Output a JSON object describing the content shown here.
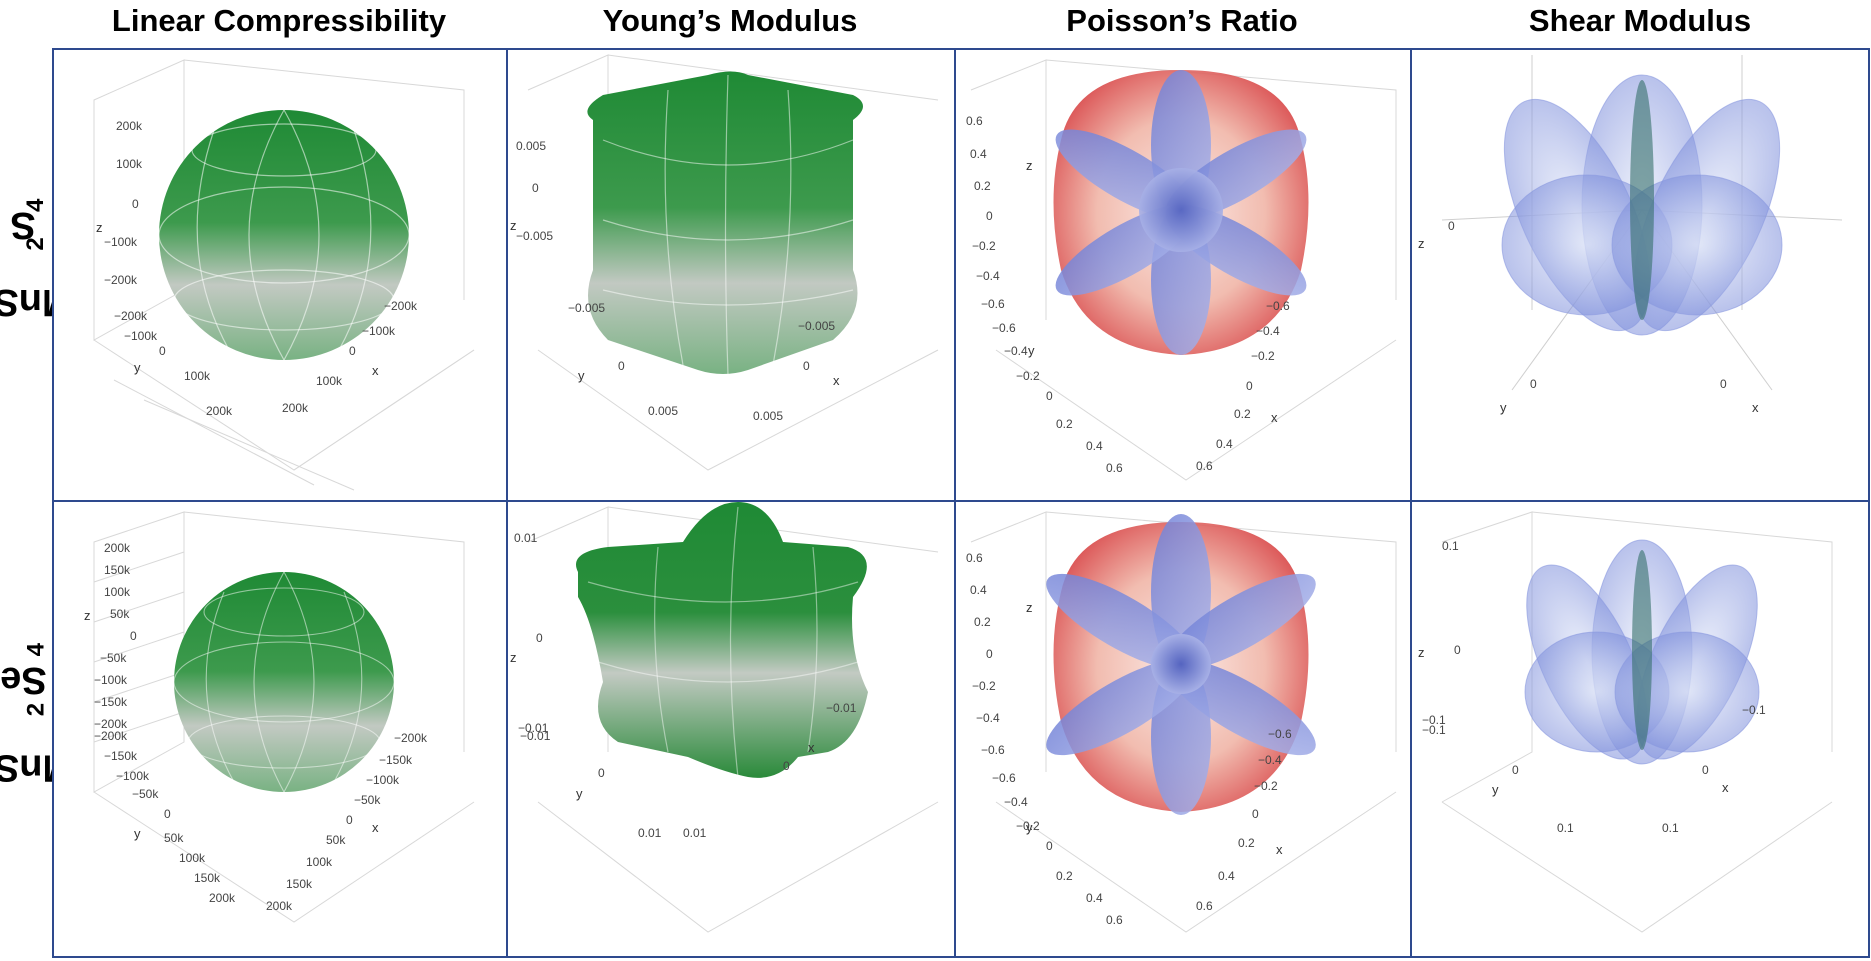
{
  "columns": [
    {
      "title": "Linear Compressibility"
    },
    {
      "title": "Young’s Modulus"
    },
    {
      "title": "Poisson’s Ratio"
    },
    {
      "title": "Shear Modulus"
    }
  ],
  "rows": [
    {
      "formula_prefix": "MnSc",
      "formula_sub1": "2",
      "formula_mid": "S",
      "formula_sub2": "4"
    },
    {
      "formula_prefix": "MnSc",
      "formula_sub1": "2",
      "formula_mid": "Se",
      "formula_sub2": "4"
    }
  ],
  "panels": {
    "r0c0": {
      "z_ticks": [
        "200k",
        "100k",
        "0",
        "−100k",
        "−200k"
      ],
      "y_ticks": [
        "−200k",
        "−100k",
        "0",
        "100k",
        "200k"
      ],
      "x_ticks": [
        "−200k",
        "−100k",
        "0",
        "100k",
        "200k"
      ],
      "axes": {
        "x": "x",
        "y": "y",
        "z": "z"
      }
    },
    "r0c1": {
      "z_ticks": [
        "0.005",
        "0",
        "−0.005"
      ],
      "y_ticks": [
        "−0.005",
        "0",
        "0.005"
      ],
      "x_ticks": [
        "−0.005",
        "0",
        "0.005"
      ],
      "axes": {
        "x": "x",
        "y": "y",
        "z": "z"
      }
    },
    "r0c2": {
      "z_ticks": [
        "0.6",
        "0.4",
        "0.2",
        "0",
        "−0.2",
        "−0.4",
        "−0.6"
      ],
      "y_ticks": [
        "−0.6",
        "−0.4",
        "−0.2",
        "0",
        "0.2",
        "0.4",
        "0.6"
      ],
      "x_ticks": [
        "−0.6",
        "−0.4",
        "−0.2",
        "0",
        "0.2",
        "0.4",
        "0.6"
      ],
      "axes": {
        "x": "x",
        "y": "y",
        "z": "z"
      }
    },
    "r0c3": {
      "z_ticks": [
        "0"
      ],
      "y_ticks": [
        "0"
      ],
      "x_ticks": [
        "0"
      ],
      "axes": {
        "x": "x",
        "y": "y",
        "z": "z"
      }
    },
    "r1c0": {
      "z_ticks": [
        "200k",
        "150k",
        "100k",
        "50k",
        "0",
        "−50k",
        "−100k",
        "−150k",
        "−200k"
      ],
      "y_ticks": [
        "−200k",
        "−150k",
        "−100k",
        "−50k",
        "0",
        "50k",
        "100k",
        "150k",
        "200k"
      ],
      "x_ticks": [
        "−200k",
        "−150k",
        "−100k",
        "−50k",
        "0",
        "50k",
        "100k",
        "150k",
        "200k"
      ],
      "axes": {
        "x": "x",
        "y": "y",
        "z": "z"
      }
    },
    "r1c1": {
      "z_ticks": [
        "0.01",
        "0",
        "−0.01"
      ],
      "y_ticks": [
        "−0.01",
        "0",
        "0.01"
      ],
      "x_ticks": [
        "−0.01",
        "0",
        "0.01"
      ],
      "axes": {
        "x": "x",
        "y": "y",
        "z": "z"
      }
    },
    "r1c2": {
      "z_ticks": [
        "0.6",
        "0.4",
        "0.2",
        "0",
        "−0.2",
        "−0.4",
        "−0.6"
      ],
      "y_ticks": [
        "−0.6",
        "−0.4",
        "−0.2",
        "0",
        "0.2",
        "0.4",
        "0.6"
      ],
      "x_ticks": [
        "−0.6",
        "−0.4",
        "−0.2",
        "0",
        "0.2",
        "0.4",
        "0.6"
      ],
      "axes": {
        "x": "x",
        "y": "y",
        "z": "z"
      }
    },
    "r1c3": {
      "z_ticks": [
        "0.1",
        "0",
        "−0.1"
      ],
      "y_ticks": [
        "−0.1",
        "0",
        "0.1"
      ],
      "x_ticks": [
        "−0.1",
        "0",
        "0.1"
      ],
      "axes": {
        "x": "x",
        "y": "y",
        "z": "z"
      }
    }
  },
  "colors": {
    "border": "#2e4a8e",
    "green_top": "#1f8a35",
    "green_mid": "#b9c2b9",
    "red_shell": "#d94a4a",
    "blue_lobe": "#6677cc",
    "grid": "#d8d8d8"
  }
}
